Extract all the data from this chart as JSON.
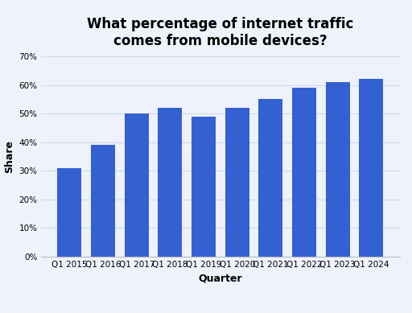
{
  "categories": [
    "Q1 2015",
    "Q1 2016",
    "Q1 2017",
    "Q1 2018",
    "Q1 2019",
    "Q1 2020",
    "Q1 2021",
    "Q1 2022",
    "Q1 2023",
    "Q1 2024"
  ],
  "values": [
    0.31,
    0.39,
    0.5,
    0.52,
    0.49,
    0.52,
    0.55,
    0.59,
    0.61,
    0.62
  ],
  "bar_color": "#3461D1",
  "background_color": "#EEF2FA",
  "title_line1": "What percentage of internet traffic",
  "title_line2": "comes from mobile devices?",
  "xlabel": "Quarter",
  "ylabel": "Share",
  "ylim": [
    0,
    0.7
  ],
  "yticks": [
    0.0,
    0.1,
    0.2,
    0.3,
    0.4,
    0.5,
    0.6,
    0.7
  ],
  "title_fontsize": 12,
  "axis_label_fontsize": 9,
  "tick_fontsize": 7.5,
  "grid_color": "#d0d8e8",
  "bar_edge_color": "none"
}
